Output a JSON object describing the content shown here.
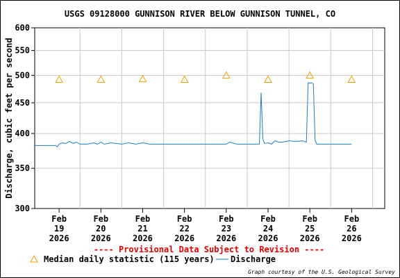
{
  "chart_data": {
    "type": "line",
    "title": "USGS 09128000 GUNNISON RIVER BELOW GUNNISON TUNNEL, CO",
    "ylabel": "Discharge, cubic feet per second",
    "xlabel": "",
    "y_scale": "log",
    "ylim": [
      300,
      600
    ],
    "y_ticks": [
      "300",
      "350",
      "400",
      "450",
      "500",
      "550",
      "600"
    ],
    "x_ticks": [
      {
        "line1": "Feb",
        "line2": "19",
        "line3": "2026"
      },
      {
        "line1": "Feb",
        "line2": "20",
        "line3": "2026"
      },
      {
        "line1": "Feb",
        "line2": "21",
        "line3": "2026"
      },
      {
        "line1": "Feb",
        "line2": "22",
        "line3": "2026"
      },
      {
        "line1": "Feb",
        "line2": "23",
        "line3": "2026"
      },
      {
        "line1": "Feb",
        "line2": "24",
        "line3": "2026"
      },
      {
        "line1": "Feb",
        "line2": "25",
        "line3": "2026"
      },
      {
        "line1": "Feb",
        "line2": "26",
        "line3": "2026"
      }
    ],
    "xlim": [
      "2026-02-18 10:00",
      "2026-02-26 19:00"
    ],
    "grid": true,
    "series": [
      {
        "name": "Median daily statistic (115 years)",
        "marker": "triangle",
        "color": "#e8a000",
        "x": [
          "2026-02-19 00:00",
          "2026-02-20 00:00",
          "2026-02-21 00:00",
          "2026-02-22 00:00",
          "2026-02-23 00:00",
          "2026-02-24 00:00",
          "2026-02-25 00:00",
          "2026-02-26 00:00"
        ],
        "y": [
          492,
          492,
          493,
          492,
          500,
          492,
          500,
          492
        ]
      },
      {
        "name": "Discharge",
        "color": "#1f7fbf",
        "x": [
          "2026-02-18 10:00",
          "2026-02-18 22:00",
          "2026-02-18 23:00",
          "2026-02-19 00:00",
          "2026-02-19 02:00",
          "2026-02-19 04:00",
          "2026-02-19 06:00",
          "2026-02-19 08:00",
          "2026-02-19 10:00",
          "2026-02-19 12:00",
          "2026-02-19 16:00",
          "2026-02-19 20:00",
          "2026-02-19 22:00",
          "2026-02-20 00:00",
          "2026-02-20 02:00",
          "2026-02-20 06:00",
          "2026-02-20 12:00",
          "2026-02-20 16:00",
          "2026-02-20 20:00",
          "2026-02-21 00:00",
          "2026-02-21 04:00",
          "2026-02-21 08:00",
          "2026-02-21 12:00",
          "2026-02-21 16:00",
          "2026-02-22 00:00",
          "2026-02-23 00:00",
          "2026-02-23 02:00",
          "2026-02-23 06:00",
          "2026-02-23 12:00",
          "2026-02-23 19:00",
          "2026-02-23 20:00",
          "2026-02-23 21:00",
          "2026-02-23 22:00",
          "2026-02-24 00:00",
          "2026-02-24 02:00",
          "2026-02-24 04:00",
          "2026-02-24 06:00",
          "2026-02-24 08:00",
          "2026-02-24 12:00",
          "2026-02-24 16:00",
          "2026-02-24 20:00",
          "2026-02-24 22:00",
          "2026-02-24 23:00",
          "2026-02-25 00:00",
          "2026-02-25 01:00",
          "2026-02-25 02:00",
          "2026-02-25 03:00",
          "2026-02-25 04:00",
          "2026-02-25 06:00",
          "2026-02-25 12:00",
          "2026-02-26 00:00"
        ],
        "y": [
          382,
          382,
          380,
          384,
          386,
          385,
          388,
          385,
          387,
          384,
          384,
          386,
          384,
          387,
          384,
          386,
          384,
          386,
          384,
          386,
          384,
          384,
          384,
          384,
          384,
          384,
          387,
          384,
          384,
          384,
          468,
          392,
          385,
          386,
          384,
          389,
          387,
          387,
          389,
          388,
          389,
          387,
          486,
          485,
          486,
          484,
          390,
          384,
          384,
          384,
          384
        ]
      }
    ],
    "provisional_note": "---- Provisional Data Subject to Revision ----",
    "legend_position": "bottom",
    "credit": "Graph courtesy of the U.S. Geological Survey",
    "colors": {
      "grid": "#c8c8c8",
      "note": "#e00000",
      "discharge": "#1f7fbf",
      "median": "#e8a000"
    }
  }
}
